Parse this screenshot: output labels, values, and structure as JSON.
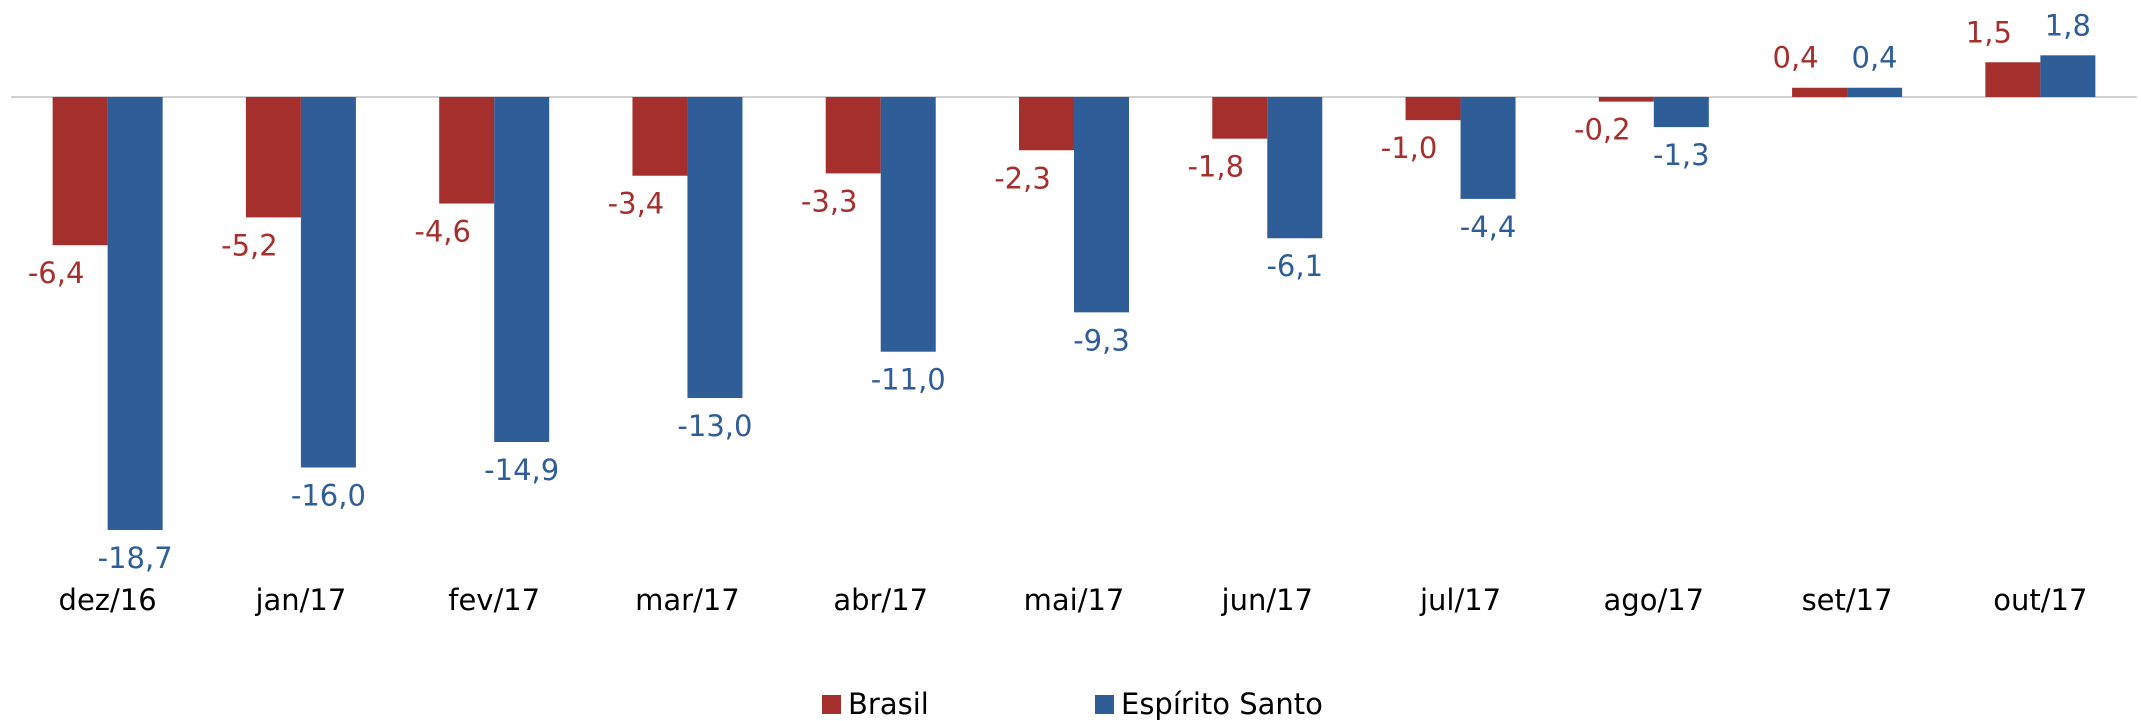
{
  "chart_data": {
    "type": "bar",
    "categories": [
      "dez/16",
      "jan/17",
      "fev/17",
      "mar/17",
      "abr/17",
      "mai/17",
      "jun/17",
      "jul/17",
      "ago/17",
      "set/17",
      "out/17"
    ],
    "series": [
      {
        "name": "Brasil",
        "color": "#a52f2d",
        "values": [
          -6.4,
          -5.2,
          -4.6,
          -3.4,
          -3.3,
          -2.3,
          -1.8,
          -1.0,
          -0.2,
          0.4,
          1.5
        ],
        "value_labels": [
          "-6,4",
          "-5,2",
          "-4,6",
          "-3,4",
          "-3,3",
          "-2,3",
          "-1,8",
          "-1,0",
          "-0,2",
          "0,4",
          "1,5"
        ]
      },
      {
        "name": "Espírito Santo",
        "color": "#2e5d98",
        "values": [
          -18.7,
          -16.0,
          -14.9,
          -13.0,
          -11.0,
          -9.3,
          -6.1,
          -4.4,
          -1.3,
          0.4,
          1.8
        ],
        "value_labels": [
          "-18,7",
          "-16,0",
          "-14,9",
          "-13,0",
          "-11,0",
          "-9,3",
          "-6,1",
          "-4,4",
          "-1,3",
          "0,4",
          "1,8"
        ]
      }
    ],
    "legend": "bottom"
  }
}
